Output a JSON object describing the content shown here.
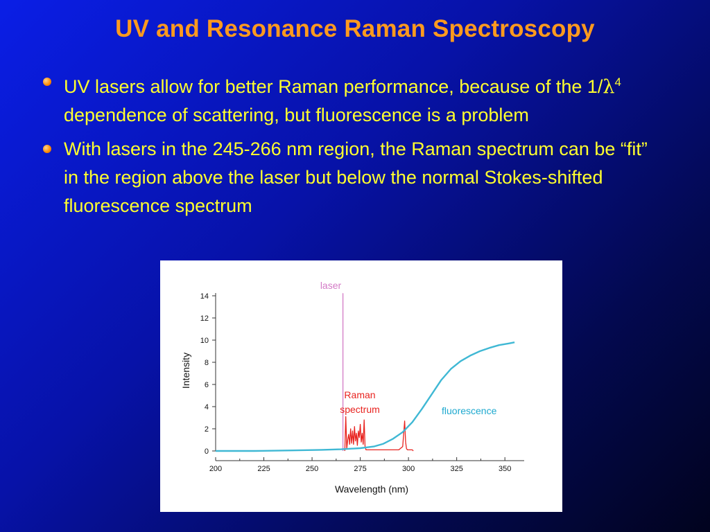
{
  "slide": {
    "title": "UV and Resonance Raman Spectroscopy",
    "bullets": [
      {
        "text_before": "UV lasers allow for better Raman performance, because of the 1/",
        "lambda": "λ",
        "exponent": "4",
        "text_after": " dependence of scattering, but fluorescence is a problem"
      },
      {
        "text": "With lasers in the 245-266 nm region, the Raman spectrum can be “fit” in the region above the laser but below the normal Stokes-shifted fluorescence spectrum"
      }
    ]
  },
  "chart_data": {
    "type": "line",
    "xlabel": "Wavelength (nm)",
    "ylabel": "Intensity",
    "xlim": [
      200,
      360
    ],
    "ylim": [
      0,
      14
    ],
    "xticks": [
      200,
      225,
      250,
      275,
      300,
      325,
      350
    ],
    "yticks": [
      0,
      2,
      4,
      6,
      8,
      10,
      12,
      14
    ],
    "grid": false,
    "annotations": [
      {
        "text": "laser",
        "color": "#d37ac6"
      },
      {
        "text": "Raman",
        "color": "#e8231f"
      },
      {
        "text": "spectrum",
        "color": "#e8231f"
      },
      {
        "text": "fluorescence",
        "color": "#1ea9cf"
      }
    ],
    "series": [
      {
        "name": "laser",
        "color": "#d37ac6",
        "x": [
          266,
          266,
          266
        ],
        "y": [
          0,
          14.2,
          0
        ]
      },
      {
        "name": "Raman spectrum",
        "color": "#e8231f",
        "x": [
          267,
          267.5,
          268,
          268.5,
          269,
          269.5,
          270,
          270.5,
          271,
          271.5,
          272,
          272.5,
          273,
          273.5,
          274,
          274.5,
          275,
          275.5,
          276,
          276.5,
          277,
          277.5,
          278,
          279,
          282,
          285,
          290,
          295,
          297,
          298,
          298.5,
          299,
          299.5,
          300,
          302,
          302.5
        ],
        "y": [
          0,
          3.1,
          0.2,
          1.0,
          1.5,
          0.6,
          2.0,
          0.7,
          1.8,
          0.6,
          2.2,
          0.9,
          1.6,
          0.5,
          1.8,
          1.2,
          2.4,
          0.8,
          1.6,
          0.6,
          2.8,
          0.4,
          0.1,
          0.1,
          0.1,
          0.1,
          0.1,
          0.1,
          0.4,
          2.7,
          0.8,
          0.2,
          0.1,
          0.1,
          0.1,
          0.0
        ]
      },
      {
        "name": "fluorescence",
        "color": "#3fb8d4",
        "x": [
          200,
          220,
          240,
          255,
          265,
          275,
          282,
          287,
          292,
          297,
          302,
          307,
          312,
          317,
          322,
          327,
          332,
          337,
          342,
          347,
          352,
          355
        ],
        "y": [
          0.0,
          0.0,
          0.05,
          0.1,
          0.15,
          0.25,
          0.4,
          0.65,
          1.1,
          1.7,
          2.6,
          3.8,
          5.1,
          6.4,
          7.4,
          8.1,
          8.6,
          9.0,
          9.3,
          9.55,
          9.7,
          9.8
        ]
      }
    ]
  }
}
